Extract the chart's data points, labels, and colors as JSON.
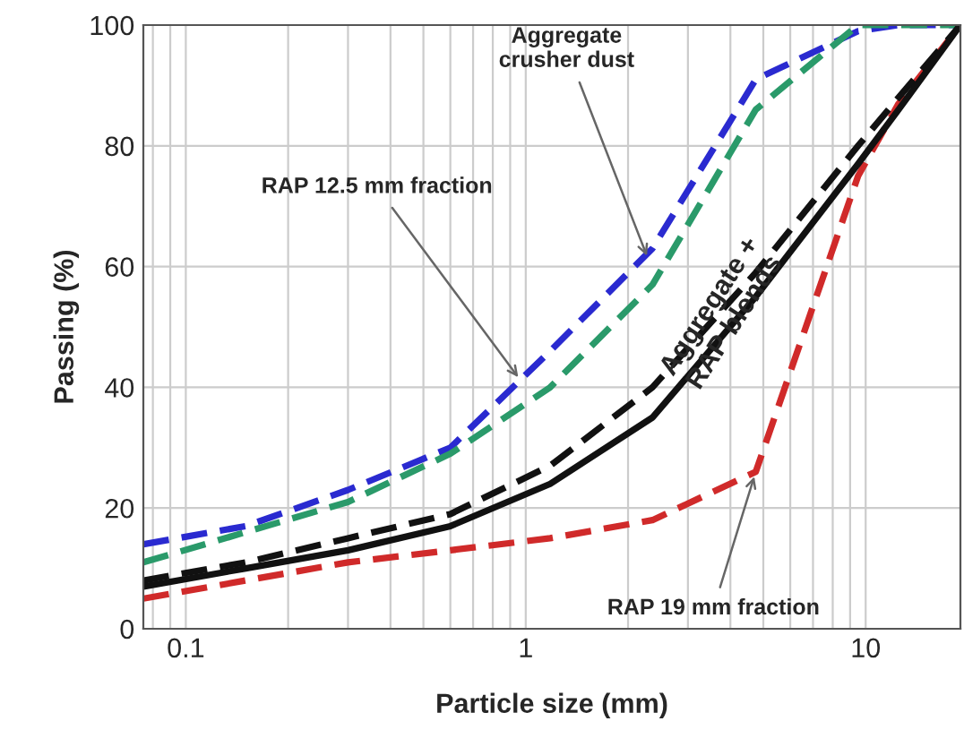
{
  "chart_data": {
    "type": "line",
    "xlabel": "Particle size (mm)",
    "ylabel": "Passing (%)",
    "log": "x",
    "grid": true,
    "legend": false,
    "xlim": [
      0.075,
      19
    ],
    "xticks": [
      0.1,
      1,
      10
    ],
    "ylim": [
      0,
      100
    ],
    "yticks": [
      0,
      20,
      40,
      60,
      80,
      100
    ],
    "x": [
      0.075,
      0.15,
      0.3,
      0.6,
      1.18,
      2.36,
      4.75,
      9.5,
      12.5,
      19
    ],
    "series": [
      {
        "color": "#2a2ad0",
        "line_style": "dashed",
        "values": [
          14,
          17,
          23,
          30,
          46,
          63,
          91,
          99,
          100,
          100
        ]
      },
      {
        "color": "#2a9a6a",
        "line_style": "dashed",
        "values": [
          11,
          16,
          21,
          29,
          40,
          57,
          86,
          100,
          100,
          100
        ]
      },
      {
        "color": "#d02a2a",
        "line_style": "dashed",
        "values": [
          5,
          8,
          11,
          13,
          15,
          18,
          26,
          75,
          87,
          100
        ]
      },
      {
        "color": "#111111",
        "line_style": "dashed",
        "values": [
          8,
          11,
          15,
          19,
          27,
          40,
          59,
          80,
          88,
          100
        ]
      },
      {
        "color": "#111111",
        "line_style": "solid",
        "values": [
          7,
          10,
          13,
          17,
          24,
          35,
          55,
          77,
          86,
          100
        ]
      }
    ],
    "annotations": [
      {
        "text": "Aggregate\ncrusher dust",
        "x": 2.3,
        "y": 61
      },
      {
        "text": "RAP 12.5 mm fraction",
        "x": 0.97,
        "y": 41
      },
      {
        "text": "RAP 19 mm fraction",
        "x": 4.75,
        "y": 26
      },
      {
        "text": "Aggregate +\nRAP blends",
        "x": 3.8,
        "y": 52
      }
    ]
  }
}
